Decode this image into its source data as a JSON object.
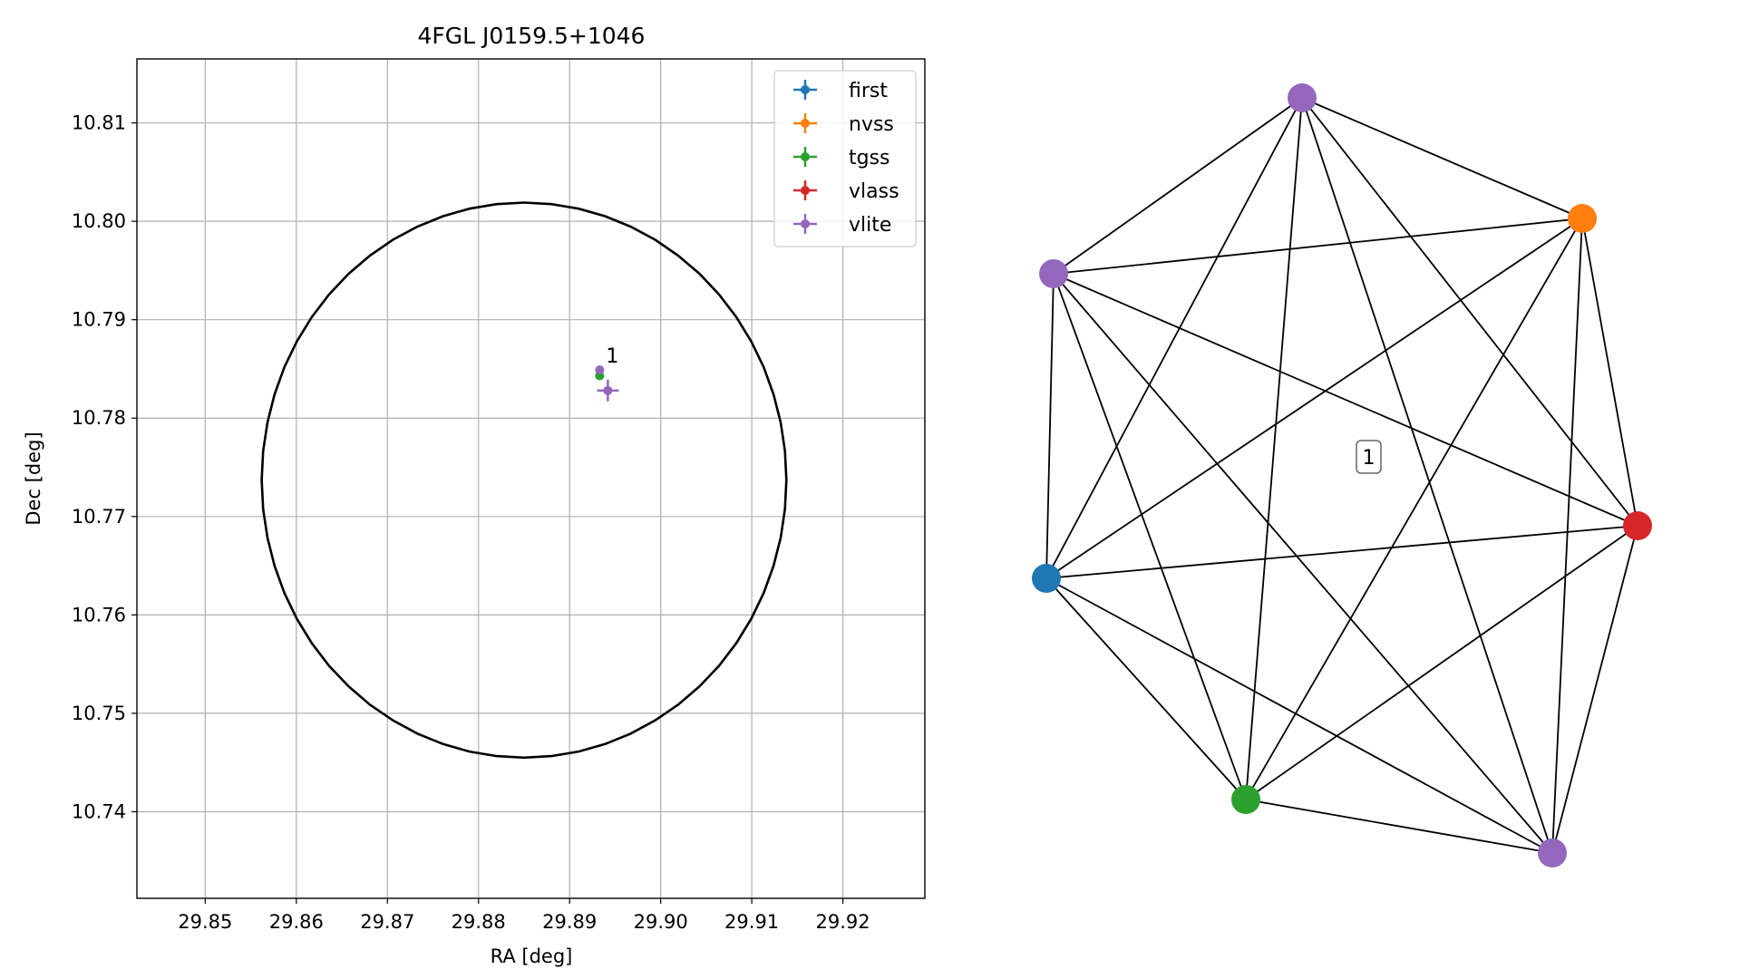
{
  "chart_data": [
    {
      "type": "scatter",
      "title": "4FGL J0159.5+1046",
      "xlabel": "RA [deg]",
      "ylabel": "Dec [deg]",
      "xlim": [
        29.8425,
        29.929
      ],
      "ylim": [
        10.7312,
        10.8165
      ],
      "x_ticks": [
        "29.85",
        "29.86",
        "29.87",
        "29.88",
        "29.89",
        "29.90",
        "29.91",
        "29.92"
      ],
      "y_ticks": [
        "10.74",
        "10.75",
        "10.76",
        "10.77",
        "10.78",
        "10.79",
        "10.80",
        "10.81"
      ],
      "grid": true,
      "legend_position": "upper-right",
      "legend": [
        "first",
        "nvss",
        "tgss",
        "vlass",
        "vlite"
      ],
      "ellipse": {
        "center_ra": 29.885,
        "center_dec": 10.7737,
        "half_width_ra": 0.0288,
        "half_height_dec": 0.0282
      },
      "series": [
        {
          "name": "first",
          "color": "#1f77b4",
          "points": []
        },
        {
          "name": "nvss",
          "color": "#ff7f0e",
          "points": []
        },
        {
          "name": "tgss",
          "color": "#2ca02c",
          "points": [
            {
              "ra": 29.8933,
              "dec": 10.7843,
              "err_ra": 0.0003,
              "err_dec": 0.0003
            }
          ]
        },
        {
          "name": "vlass",
          "color": "#d62728",
          "points": []
        },
        {
          "name": "vlite",
          "color": "#9467bd",
          "points": [
            {
              "ra": 29.8933,
              "dec": 10.7849,
              "err_ra": 0.0003,
              "err_dec": 0.0003
            },
            {
              "ra": 29.8942,
              "dec": 10.7828,
              "err_ra": 0.0012,
              "err_dec": 0.0011
            }
          ]
        }
      ],
      "annotations": [
        {
          "text": "1",
          "ra": 29.894,
          "dec": 10.7852
        }
      ]
    },
    {
      "type": "network",
      "label": "1",
      "nodes": [
        {
          "id": "A",
          "color": "#9467bd"
        },
        {
          "id": "B",
          "color": "#ff7f0e"
        },
        {
          "id": "C",
          "color": "#9467bd"
        },
        {
          "id": "D",
          "color": "#d62728"
        },
        {
          "id": "E",
          "color": "#1f77b4"
        },
        {
          "id": "F",
          "color": "#2ca02c"
        },
        {
          "id": "G",
          "color": "#9467bd"
        }
      ],
      "edges": "complete"
    }
  ]
}
